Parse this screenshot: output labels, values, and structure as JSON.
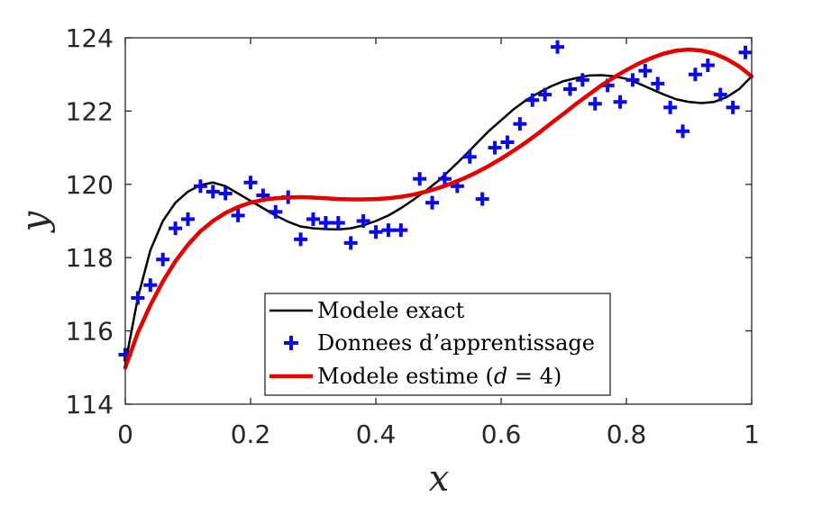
{
  "chart_data": {
    "type": "line",
    "xlabel": "x",
    "ylabel": "y",
    "xlim": [
      0,
      1
    ],
    "ylim": [
      114,
      124
    ],
    "xticks": [
      0,
      0.2,
      0.4,
      0.6,
      0.8,
      1
    ],
    "xtick_labels": [
      "0",
      "0.2",
      "0.4",
      "0.6",
      "0.8",
      "1"
    ],
    "yticks": [
      114,
      116,
      118,
      120,
      122,
      124
    ],
    "ytick_labels": [
      "114",
      "116",
      "118",
      "120",
      "122",
      "124"
    ],
    "grid": false,
    "legend_position": "bottom-center",
    "series": [
      {
        "name": "Modele exact",
        "kind": "line",
        "color": "#000000",
        "x": [
          0,
          0.02,
          0.04,
          0.06,
          0.08,
          0.1,
          0.12,
          0.14,
          0.16,
          0.18,
          0.2,
          0.22,
          0.24,
          0.26,
          0.28,
          0.3,
          0.32,
          0.34,
          0.36,
          0.38,
          0.4,
          0.42,
          0.44,
          0.46,
          0.48,
          0.5,
          0.52,
          0.54,
          0.56,
          0.58,
          0.6,
          0.62,
          0.64,
          0.66,
          0.68,
          0.7,
          0.72,
          0.74,
          0.76,
          0.78,
          0.8,
          0.82,
          0.84,
          0.86,
          0.88,
          0.9,
          0.92,
          0.94,
          0.96,
          0.98,
          1.0
        ],
        "y": [
          115.1,
          116.9,
          118.2,
          119.0,
          119.5,
          119.8,
          119.98,
          120.05,
          119.95,
          119.75,
          119.55,
          119.35,
          119.15,
          118.98,
          118.85,
          118.8,
          118.78,
          118.77,
          118.8,
          118.88,
          119.0,
          119.15,
          119.35,
          119.58,
          119.83,
          120.1,
          120.42,
          120.75,
          121.1,
          121.45,
          121.75,
          122.05,
          122.3,
          122.5,
          122.68,
          122.82,
          122.9,
          122.97,
          122.98,
          122.95,
          122.88,
          122.75,
          122.6,
          122.45,
          122.32,
          122.25,
          122.22,
          122.25,
          122.38,
          122.6,
          122.95
        ]
      },
      {
        "name": "Donnees d'apprentissage",
        "kind": "scatter",
        "color": "#0a0ae6",
        "marker": "+",
        "x": [
          0,
          0.02,
          0.04,
          0.06,
          0.08,
          0.1,
          0.12,
          0.14,
          0.16,
          0.18,
          0.2,
          0.22,
          0.24,
          0.26,
          0.28,
          0.3,
          0.32,
          0.34,
          0.36,
          0.38,
          0.4,
          0.42,
          0.44,
          0.47,
          0.49,
          0.51,
          0.53,
          0.55,
          0.57,
          0.59,
          0.61,
          0.63,
          0.65,
          0.67,
          0.69,
          0.71,
          0.73,
          0.75,
          0.77,
          0.79,
          0.81,
          0.83,
          0.85,
          0.87,
          0.89,
          0.91,
          0.93,
          0.95,
          0.97,
          0.99
        ],
        "y": [
          115.35,
          116.9,
          117.25,
          117.95,
          118.8,
          119.05,
          119.95,
          119.8,
          119.75,
          119.15,
          120.05,
          119.7,
          119.25,
          119.65,
          118.5,
          119.05,
          118.95,
          118.95,
          118.4,
          119.0,
          118.7,
          118.75,
          118.75,
          120.15,
          119.5,
          120.15,
          119.95,
          120.75,
          119.6,
          121.0,
          121.15,
          121.65,
          122.3,
          122.45,
          123.75,
          122.6,
          122.85,
          122.2,
          122.7,
          122.25,
          122.85,
          123.1,
          122.75,
          122.1,
          121.45,
          123.0,
          123.25,
          122.45,
          122.1,
          123.6
        ]
      },
      {
        "name": "Modele estime (d = 4)",
        "kind": "line",
        "color": "#e60000",
        "x": [
          0,
          0.02,
          0.04,
          0.06,
          0.08,
          0.1,
          0.12,
          0.14,
          0.16,
          0.18,
          0.2,
          0.22,
          0.24,
          0.26,
          0.28,
          0.3,
          0.32,
          0.34,
          0.36,
          0.38,
          0.4,
          0.42,
          0.44,
          0.46,
          0.48,
          0.5,
          0.52,
          0.54,
          0.56,
          0.58,
          0.6,
          0.62,
          0.64,
          0.66,
          0.68,
          0.7,
          0.72,
          0.74,
          0.76,
          0.78,
          0.8,
          0.82,
          0.84,
          0.86,
          0.88,
          0.9,
          0.92,
          0.94,
          0.96,
          0.98,
          1.0
        ],
        "y": [
          115.0,
          115.95,
          116.7,
          117.35,
          117.9,
          118.35,
          118.72,
          119.0,
          119.22,
          119.38,
          119.5,
          119.58,
          119.62,
          119.64,
          119.65,
          119.64,
          119.62,
          119.6,
          119.59,
          119.59,
          119.6,
          119.62,
          119.66,
          119.72,
          119.8,
          119.9,
          120.02,
          120.16,
          120.32,
          120.5,
          120.7,
          120.92,
          121.15,
          121.4,
          121.67,
          121.93,
          122.2,
          122.45,
          122.7,
          122.92,
          123.12,
          123.3,
          123.45,
          123.57,
          123.65,
          123.68,
          123.65,
          123.57,
          123.42,
          123.22,
          122.95
        ]
      }
    ],
    "legend": {
      "entries": [
        {
          "text": "Modele exact"
        },
        {
          "text": "Donnees d’apprentissage"
        },
        {
          "text_prefix": "Modele estime (",
          "math_var": "d",
          "math_rest": " = 4)"
        }
      ]
    }
  }
}
